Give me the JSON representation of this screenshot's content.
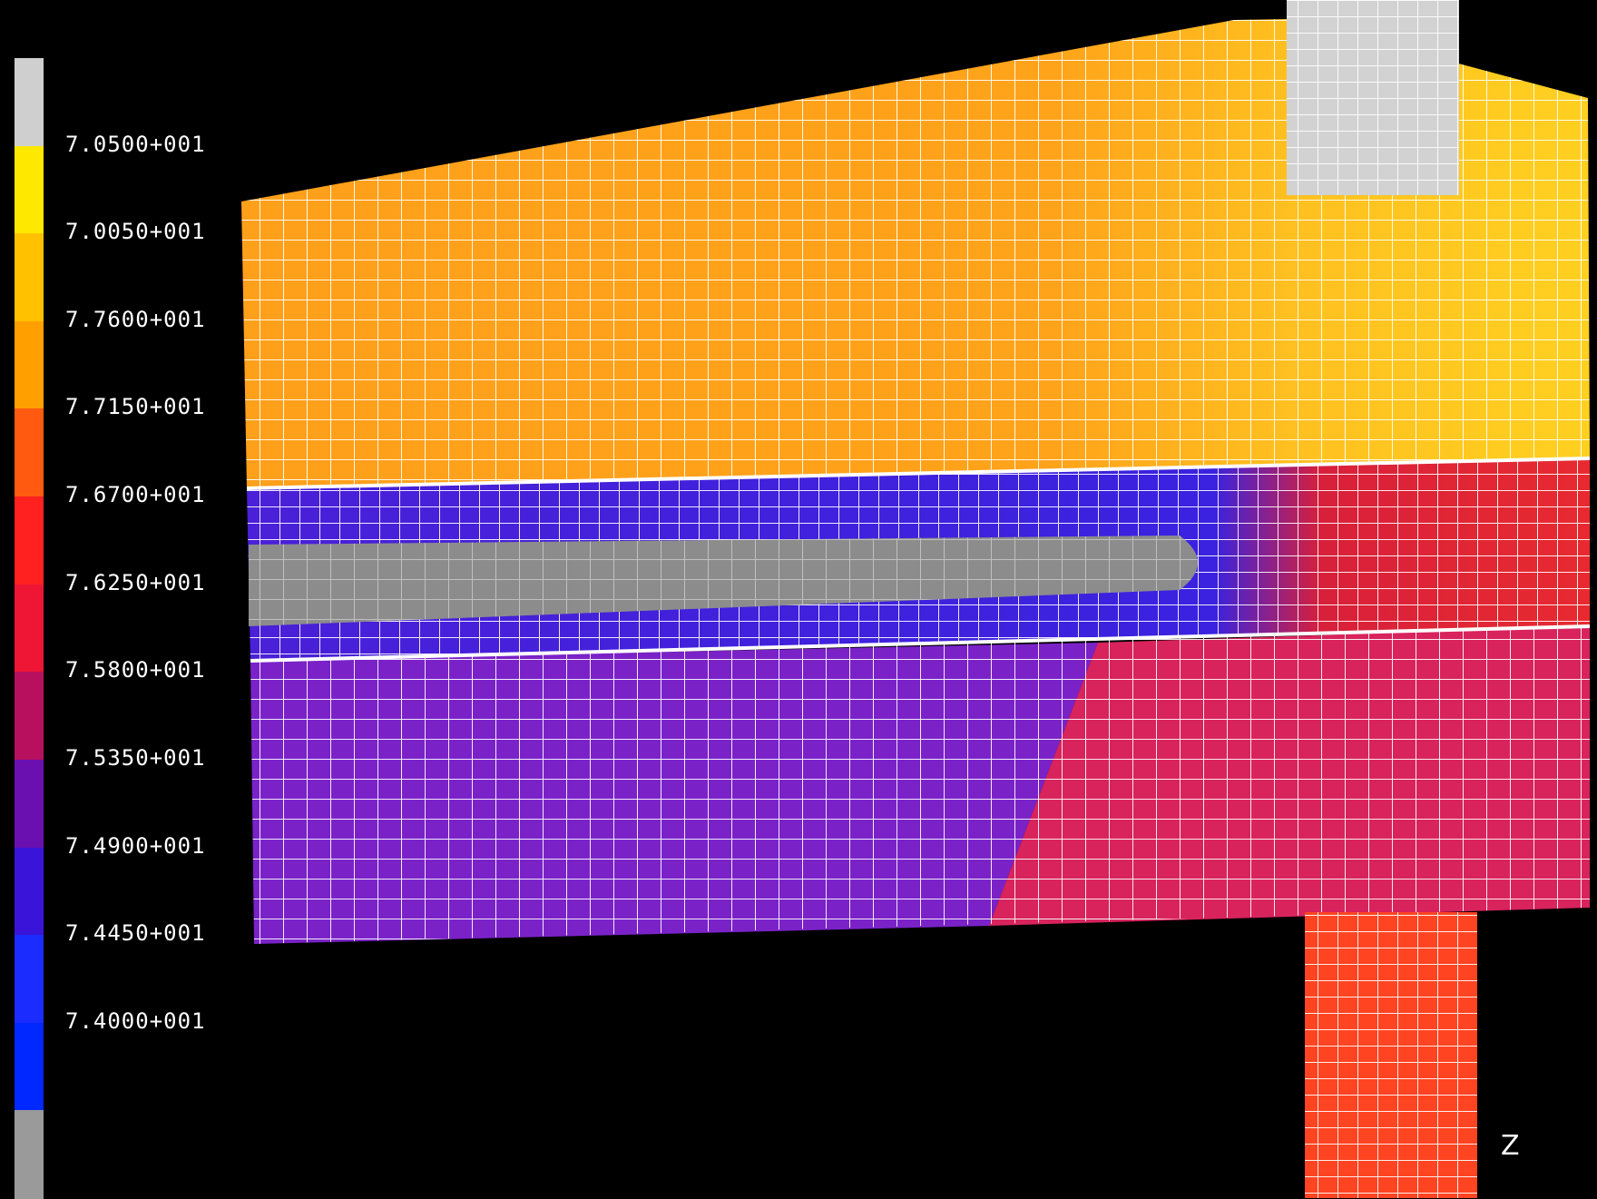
{
  "legend": {
    "colors": [
      "#cfcfcf",
      "#ffe800",
      "#ffc100",
      "#ff9f00",
      "#ff5a10",
      "#ff2020",
      "#ee1535",
      "#b8105f",
      "#6a10b0",
      "#3a14d8",
      "#1a2cff",
      "#0028ff",
      "#9a9a9a"
    ],
    "labels": [
      "7.0500+001",
      "7.0050+001",
      "7.7600+001",
      "7.7150+001",
      "7.6700+001",
      "7.6250+001",
      "7.5800+001",
      "7.5350+001",
      "7.4900+001",
      "7.4450+001",
      "7.4000+001"
    ]
  },
  "regions": {
    "top_layer": "#ffa31a",
    "hotspot": "#ffd020",
    "insert_block": "#d2d2d2",
    "middle_band_hot": "#f0303a",
    "blue_band": "#2a2cff",
    "gray_core": "#8c8c8c",
    "lower_cold": "#7a22c8",
    "lower_hot": "#d8235c",
    "pillar": "#ff4422",
    "mesh_lines": "#ffffff"
  },
  "axis": {
    "label": "Z"
  }
}
